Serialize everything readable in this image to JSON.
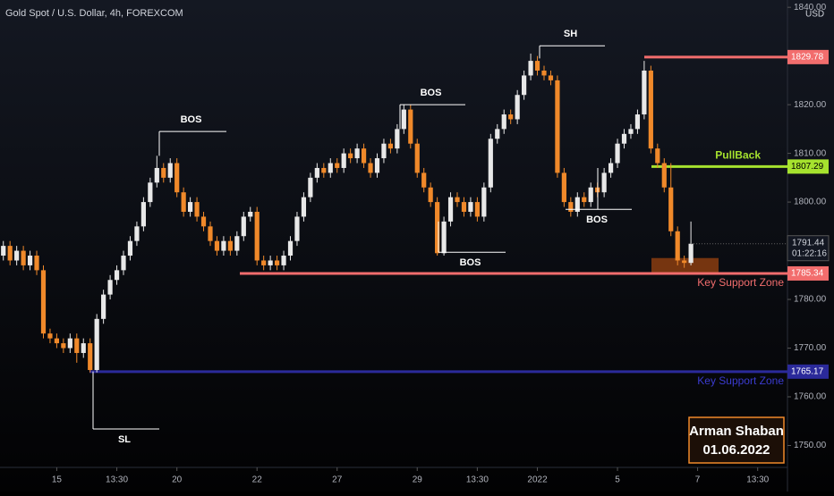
{
  "chart_data": {
    "type": "candlestick",
    "title": "Gold Spot / U.S. Dollar, 4h, FOREXCOM",
    "currency": "USD",
    "categories": [
      null,
      null,
      null,
      null,
      null,
      null,
      null,
      null,
      "15",
      null,
      null,
      null,
      null,
      null,
      null,
      null,
      null,
      "13:30",
      null,
      null,
      null,
      null,
      null,
      null,
      null,
      null,
      "20",
      null,
      null,
      null,
      null,
      null,
      null,
      null,
      null,
      null,
      null,
      null,
      "22",
      null,
      null,
      null,
      null,
      null,
      null,
      null,
      null,
      null,
      null,
      null,
      "27",
      null,
      null,
      null,
      null,
      null,
      null,
      null,
      null,
      null,
      null,
      null,
      "29",
      null,
      null,
      null,
      null,
      null,
      null,
      null,
      null,
      "13:30",
      null,
      null,
      null,
      null,
      null,
      null,
      null,
      null,
      "2022",
      null,
      null,
      null,
      null,
      null,
      null,
      null,
      null,
      null,
      null,
      null,
      "5",
      null,
      null,
      null,
      null,
      null,
      null,
      null,
      null,
      null,
      null,
      null,
      "7",
      null,
      null,
      null,
      null,
      null,
      null,
      null,
      null,
      "13:30"
    ],
    "open": [
      1789,
      1791,
      1788,
      1790,
      1787,
      1789,
      1786,
      1773,
      1772,
      1771,
      1770,
      1772,
      1769,
      1771,
      1765.5,
      1776,
      1781,
      1784,
      1786,
      1789,
      1792,
      1795,
      1800,
      1804,
      1807,
      1805,
      1808,
      1802,
      1798,
      1800,
      1797,
      1795,
      1792,
      1790,
      1792,
      1790,
      1793,
      1797,
      1798,
      1788,
      1787,
      1788,
      1787,
      1789,
      1792,
      1797,
      1801,
      1805,
      1807,
      1806,
      1808,
      1807,
      1810,
      1809,
      1811,
      1808,
      1806,
      1809,
      1812,
      1811,
      1815,
      1819,
      1812,
      1806,
      1803,
      1800,
      1789.5,
      1796,
      1801,
      1800,
      1798,
      1800,
      1797,
      1803,
      1813,
      1815,
      1818,
      1817,
      1822,
      1826,
      1829,
      1827,
      1826,
      1825,
      1806,
      1800,
      1798,
      1801,
      1800,
      1803,
      1802,
      1806,
      1808,
      1812,
      1814,
      1815,
      1818,
      1827,
      1811,
      1808,
      1803,
      1794,
      1788,
      1787.5,
      null,
      null,
      null,
      null,
      null,
      null,
      null,
      null,
      null,
      null
    ],
    "high": [
      1792,
      1792,
      1791,
      1791,
      1790,
      1790,
      1787,
      1774,
      1773,
      1772,
      1773,
      1773,
      1772,
      1772,
      1777,
      1782,
      1785,
      1787,
      1790,
      1793,
      1796,
      1801,
      1805,
      1809.5,
      1808,
      1809,
      1809,
      1803,
      1801,
      1801,
      1798,
      1796,
      1793,
      1793,
      1793,
      1794,
      1798,
      1799,
      1799,
      1789,
      1789,
      1789,
      1790,
      1793,
      1798,
      1802,
      1806,
      1808,
      1808,
      1809,
      1809,
      1811,
      1811,
      1812,
      1812,
      1809,
      1810,
      1813,
      1813,
      1816,
      1820,
      1820,
      1813,
      1807,
      1804,
      1801,
      1797,
      1802,
      1802,
      1801,
      1801,
      1801,
      1804,
      1814,
      1816,
      1819,
      1819,
      1823,
      1827,
      1830.5,
      1830,
      1828,
      1827,
      1826,
      1807,
      1801,
      1802,
      1802,
      1804,
      1804,
      1807,
      1809,
      1813,
      1815,
      1816,
      1819,
      1829,
      1828,
      1812,
      1809,
      1808,
      1795,
      1789,
      1796,
      null,
      null,
      null,
      null,
      null,
      null,
      null,
      null,
      null,
      null
    ],
    "low": [
      1788,
      1787,
      1787,
      1786,
      1786,
      1785,
      1772,
      1771,
      1770,
      1769,
      1769,
      1767,
      1768,
      1765,
      1765,
      1775,
      1780,
      1783,
      1785,
      1788,
      1791,
      1794,
      1799,
      1803,
      1804,
      1804,
      1801,
      1797,
      1797,
      1796,
      1794,
      1791,
      1789,
      1789,
      1789,
      1789,
      1792,
      1796,
      1787,
      1786,
      1786,
      1786,
      1786,
      1788,
      1791,
      1796,
      1800,
      1804,
      1805,
      1805,
      1806,
      1806,
      1808,
      1808,
      1807,
      1805,
      1805,
      1808,
      1810,
      1810,
      1814,
      1811,
      1805,
      1802,
      1799,
      1789,
      1789,
      1795,
      1799,
      1797,
      1797,
      1796,
      1796,
      1802,
      1812,
      1814,
      1816,
      1816,
      1821,
      1825,
      1826,
      1825,
      1824,
      1805,
      1799,
      1797,
      1797,
      1799,
      1799,
      1801,
      1801,
      1805,
      1807,
      1811,
      1813,
      1814,
      1817,
      1810,
      1807,
      1802,
      1793,
      1787,
      1786.5,
      1787,
      null,
      null,
      null,
      null,
      null,
      null,
      null,
      null,
      null,
      null
    ],
    "close": [
      1791,
      1788,
      1790,
      1787,
      1789,
      1786,
      1773,
      1772,
      1771,
      1770,
      1772,
      1769,
      1771,
      1765.5,
      1776,
      1781,
      1784,
      1786,
      1789,
      1792,
      1795,
      1800,
      1804,
      1807,
      1805,
      1808,
      1802,
      1798,
      1800,
      1797,
      1795,
      1792,
      1790,
      1792,
      1790,
      1793,
      1797,
      1798,
      1788,
      1787,
      1788,
      1787,
      1789,
      1792,
      1797,
      1801,
      1805,
      1807,
      1806,
      1808,
      1807,
      1810,
      1809,
      1811,
      1808,
      1806,
      1809,
      1812,
      1811,
      1815,
      1819,
      1812,
      1806,
      1803,
      1800,
      1789.5,
      1796,
      1801,
      1800,
      1798,
      1800,
      1797,
      1803,
      1813,
      1815,
      1818,
      1817,
      1822,
      1826,
      1829,
      1827,
      1826,
      1825,
      1806,
      1800,
      1798,
      1801,
      1800,
      1803,
      1802,
      1806,
      1808,
      1812,
      1814,
      1815,
      1818,
      1827,
      1811,
      1808,
      1803,
      1794,
      1788,
      1787.5,
      1791.44,
      null,
      null,
      null,
      null,
      null,
      null,
      null,
      null,
      null,
      null
    ],
    "up_color": "#e8e8e8",
    "down_color": "#f0892a",
    "ylim": [
      1745.5,
      1841.5
    ],
    "yticks": [
      {
        "value": 1750,
        "label": "1750.00"
      },
      {
        "value": 1760,
        "label": "1760.00"
      },
      {
        "value": 1770,
        "label": "1770.00"
      },
      {
        "value": 1780,
        "label": "1780.00"
      },
      {
        "value": 1800,
        "label": "1800.00"
      },
      {
        "value": 1810,
        "label": "1810.00"
      },
      {
        "value": 1820,
        "label": "1820.00"
      },
      {
        "value": 1840,
        "label": "1840.00"
      }
    ],
    "levels": [
      {
        "value": 1829.78,
        "label": "1829.78",
        "color": "#f26d6d"
      },
      {
        "value": 1807.29,
        "label": "1807.29",
        "color": "#a6e22e",
        "name": "PullBack"
      },
      {
        "value": 1785.34,
        "label": "1785.34",
        "color": "#f26d6d",
        "name": "Key Support Zone"
      },
      {
        "value": 1765.17,
        "label": "1765.17",
        "color": "#2b2a9a",
        "name": "Key Support Zone"
      }
    ],
    "annotations": [
      {
        "text": "BOS",
        "value": 1814.5
      },
      {
        "text": "BOS",
        "value": 1820
      },
      {
        "text": "BOS",
        "value": 1789.7
      },
      {
        "text": "SH",
        "value": 1832.1
      },
      {
        "text": "BOS",
        "value": 1798.5
      },
      {
        "text": "SL",
        "value": 1753.4
      }
    ],
    "zone": [
      1785.6,
      1788.5
    ],
    "last_price": {
      "value": 1791.44,
      "label": "1791.44",
      "countdown": "01:22:16"
    },
    "signature": {
      "name": "Arman Shaban",
      "date": "01.06.2022"
    }
  }
}
